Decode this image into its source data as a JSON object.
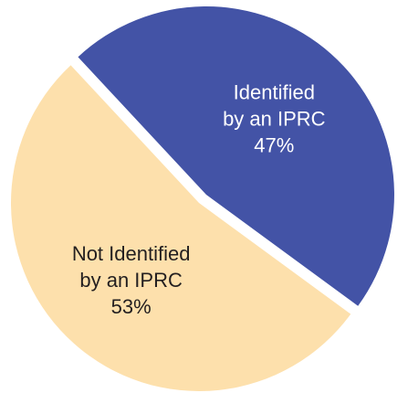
{
  "chart_data": {
    "type": "pie",
    "slices": [
      {
        "label_lines": [
          "Identified",
          "by an IPRC",
          "47%"
        ],
        "value": 47,
        "color": "#4353a6",
        "label_color": "#ffffff",
        "exploded": true
      },
      {
        "label_lines": [
          "Not Identified",
          "by an IPRC",
          "53%"
        ],
        "value": 53,
        "color": "#fde0ac",
        "label_color": "#231f20",
        "exploded": false
      }
    ]
  }
}
